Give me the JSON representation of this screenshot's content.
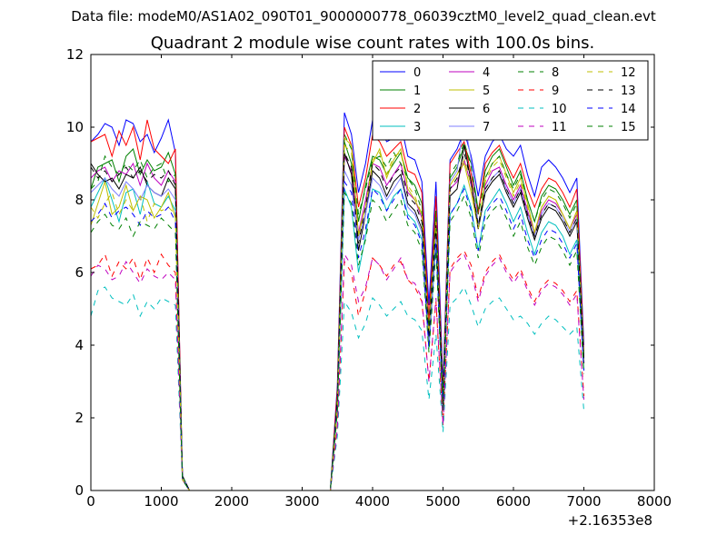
{
  "page_header": "Data file: modeM0/AS1A02_090T01_9000000778_06039cztM0_level2_quad_clean.evt",
  "chart_data": {
    "type": "line",
    "title": "Quadrant 2 module wise count rates with 100.0s bins.",
    "xlabel": "",
    "ylabel": "",
    "x_offset_label": "+2.16353e8",
    "xlim": [
      0,
      8000
    ],
    "ylim": [
      0,
      12
    ],
    "xticks": [
      0,
      1000,
      2000,
      3000,
      4000,
      5000,
      6000,
      7000,
      8000
    ],
    "yticks": [
      0,
      2,
      4,
      6,
      8,
      10,
      12
    ],
    "grid": false,
    "legend": {
      "placement": "top-right",
      "columns": 4
    },
    "x": [
      0,
      100,
      200,
      300,
      400,
      500,
      600,
      700,
      800,
      900,
      1000,
      1100,
      1200,
      1300,
      1400,
      1500,
      1600,
      1700,
      1800,
      1900,
      2000,
      2100,
      2200,
      2300,
      2400,
      2500,
      2600,
      2700,
      2800,
      2900,
      3000,
      3100,
      3200,
      3300,
      3400,
      3500,
      3600,
      3700,
      3800,
      3900,
      4000,
      4100,
      4200,
      4300,
      4400,
      4500,
      4600,
      4700,
      4800,
      4900,
      5000,
      5100,
      5200,
      5300,
      5400,
      5500,
      5600,
      5700,
      5800,
      5900,
      6000,
      6100,
      6200,
      6300,
      6400,
      6500,
      6600,
      6700,
      6800,
      6900,
      7000
    ],
    "series": [
      {
        "name": "0",
        "color": "#0000ff",
        "dash": "solid",
        "values": [
          9.6,
          9.8,
          10.1,
          10.0,
          9.5,
          10.2,
          10.1,
          9.6,
          9.8,
          9.3,
          9.7,
          10.2,
          9.3,
          0.4,
          0,
          0,
          0,
          0,
          0,
          0,
          0,
          0,
          0,
          0,
          0,
          0,
          0,
          0,
          0,
          0,
          0,
          0,
          0,
          0,
          0,
          2.9,
          10.4,
          9.8,
          8.2,
          9.0,
          10.2,
          10.0,
          9.6,
          9.7,
          10.1,
          9.2,
          9.1,
          8.5,
          5.1,
          8.5,
          2.9,
          9.1,
          9.4,
          9.9,
          9.2,
          8.1,
          9.2,
          9.6,
          9.8,
          9.4,
          9.2,
          9.5,
          8.7,
          8.1,
          8.9,
          9.1,
          8.9,
          8.6,
          8.2,
          8.6,
          4.0
        ]
      },
      {
        "name": "1",
        "color": "#008000",
        "dash": "solid",
        "values": [
          8.3,
          8.9,
          9.0,
          9.1,
          8.5,
          9.2,
          9.4,
          8.7,
          9.1,
          8.8,
          8.9,
          9.3,
          8.7,
          0.4,
          0,
          0,
          0,
          0,
          0,
          0,
          0,
          0,
          0,
          0,
          0,
          0,
          0,
          0,
          0,
          0,
          0,
          0,
          0,
          0,
          0,
          2.6,
          9.6,
          9.0,
          7.4,
          8.4,
          9.2,
          9.1,
          8.7,
          9.0,
          9.3,
          8.6,
          8.4,
          7.9,
          4.5,
          7.7,
          2.5,
          8.6,
          8.9,
          9.5,
          9.0,
          7.7,
          8.8,
          9.2,
          9.4,
          8.9,
          8.4,
          8.8,
          8.0,
          7.4,
          8.1,
          8.4,
          8.3,
          8.0,
          7.6,
          8.0,
          3.7
        ]
      },
      {
        "name": "2",
        "color": "#ff0000",
        "dash": "solid",
        "values": [
          9.6,
          9.7,
          9.8,
          9.2,
          9.9,
          9.5,
          10.0,
          9.1,
          10.2,
          9.4,
          9.2,
          9.0,
          9.4,
          0.4,
          0,
          0,
          0,
          0,
          0,
          0,
          0,
          0,
          0,
          0,
          0,
          0,
          0,
          0,
          0,
          0,
          0,
          0,
          0,
          0,
          0,
          2.8,
          10.0,
          9.5,
          7.8,
          8.6,
          9.8,
          9.6,
          9.2,
          9.4,
          9.6,
          8.8,
          8.7,
          8.2,
          4.7,
          8.1,
          2.6,
          9.0,
          9.3,
          9.6,
          8.7,
          7.6,
          9.0,
          9.3,
          9.5,
          9.0,
          8.6,
          9.0,
          8.3,
          7.8,
          8.3,
          8.6,
          8.5,
          8.2,
          7.8,
          8.3,
          3.8
        ]
      },
      {
        "name": "3",
        "color": "#00bfbf",
        "dash": "solid",
        "values": [
          7.8,
          8.2,
          8.6,
          8.0,
          7.4,
          8.2,
          8.3,
          7.6,
          8.5,
          7.9,
          7.8,
          8.1,
          7.7,
          0.3,
          0,
          0,
          0,
          0,
          0,
          0,
          0,
          0,
          0,
          0,
          0,
          0,
          0,
          0,
          0,
          0,
          0,
          0,
          0,
          0,
          0,
          2.2,
          8.3,
          7.8,
          6.0,
          7.0,
          8.3,
          8.2,
          7.7,
          8.1,
          8.3,
          7.6,
          7.4,
          6.9,
          3.9,
          6.8,
          2.2,
          7.6,
          7.9,
          8.4,
          7.8,
          6.6,
          7.7,
          8.0,
          8.3,
          7.9,
          7.4,
          7.8,
          7.1,
          6.5,
          7.1,
          7.4,
          7.3,
          7.0,
          6.5,
          6.9,
          3.3
        ]
      },
      {
        "name": "4",
        "color": "#bf00bf",
        "dash": "solid",
        "values": [
          8.6,
          8.8,
          8.9,
          8.5,
          8.8,
          8.7,
          9.0,
          8.4,
          9.0,
          8.6,
          8.4,
          8.8,
          8.5,
          0.4,
          0,
          0,
          0,
          0,
          0,
          0,
          0,
          0,
          0,
          0,
          0,
          0,
          0,
          0,
          0,
          0,
          0,
          0,
          0,
          0,
          0,
          2.5,
          9.2,
          8.8,
          7.1,
          8.0,
          9.0,
          8.9,
          8.4,
          8.7,
          9.0,
          8.2,
          8.0,
          7.5,
          4.3,
          7.4,
          2.4,
          8.3,
          8.5,
          9.1,
          8.4,
          7.2,
          8.4,
          8.8,
          8.9,
          8.4,
          8.0,
          8.4,
          7.7,
          7.1,
          7.7,
          8.0,
          7.9,
          7.6,
          7.2,
          7.6,
          3.6
        ]
      },
      {
        "name": "5",
        "color": "#bfbf00",
        "dash": "solid",
        "values": [
          7.3,
          7.9,
          8.5,
          7.6,
          7.8,
          8.4,
          7.7,
          8.1,
          8.0,
          7.5,
          7.8,
          8.2,
          7.5,
          0.3,
          0,
          0,
          0,
          0,
          0,
          0,
          0,
          0,
          0,
          0,
          0,
          0,
          0,
          0,
          0,
          0,
          0,
          0,
          0,
          0,
          0,
          2.3,
          9.7,
          9.5,
          7.0,
          7.8,
          9.0,
          9.4,
          8.6,
          9.1,
          9.4,
          8.3,
          8.0,
          7.6,
          4.2,
          7.3,
          2.4,
          8.4,
          8.7,
          9.0,
          8.2,
          7.2,
          8.6,
          9.0,
          9.2,
          8.7,
          8.2,
          8.6,
          7.9,
          7.1,
          7.8,
          8.1,
          8.0,
          7.6,
          7.2,
          7.7,
          3.5
        ]
      },
      {
        "name": "6",
        "color": "#000000",
        "dash": "solid",
        "values": [
          9.0,
          8.7,
          8.5,
          8.6,
          8.3,
          8.7,
          8.6,
          8.9,
          8.4,
          8.2,
          8.1,
          8.6,
          8.3,
          0.4,
          0,
          0,
          0,
          0,
          0,
          0,
          0,
          0,
          0,
          0,
          0,
          0,
          0,
          0,
          0,
          0,
          0,
          0,
          0,
          0,
          0,
          2.5,
          9.3,
          8.7,
          6.6,
          7.6,
          8.8,
          8.6,
          8.1,
          8.5,
          8.7,
          7.9,
          7.7,
          7.2,
          4.1,
          7.2,
          2.4,
          8.1,
          8.3,
          9.5,
          8.5,
          7.2,
          8.2,
          8.5,
          8.7,
          8.2,
          7.8,
          8.2,
          7.5,
          6.9,
          7.5,
          7.8,
          7.7,
          7.4,
          7.0,
          7.4,
          3.5
        ]
      },
      {
        "name": "7",
        "color": "#7f7fff",
        "dash": "solid",
        "values": [
          8.2,
          8.4,
          8.6,
          8.3,
          8.1,
          8.5,
          8.3,
          8.0,
          8.4,
          8.2,
          8.1,
          8.3,
          8.0,
          0.4,
          0,
          0,
          0,
          0,
          0,
          0,
          0,
          0,
          0,
          0,
          0,
          0,
          0,
          0,
          0,
          0,
          0,
          0,
          0,
          0,
          0,
          2.4,
          8.8,
          8.4,
          6.9,
          7.6,
          8.6,
          8.4,
          8.0,
          8.3,
          8.6,
          7.8,
          7.6,
          7.1,
          4.0,
          7.0,
          2.3,
          8.5,
          8.8,
          10.2,
          9.1,
          7.3,
          8.3,
          8.6,
          8.8,
          8.3,
          7.9,
          8.3,
          7.6,
          7.0,
          7.6,
          7.9,
          7.8,
          7.5,
          7.1,
          7.5,
          3.6
        ]
      },
      {
        "name": "8",
        "color": "#008000",
        "dash": "dashed",
        "values": [
          8.3,
          8.5,
          9.2,
          8.9,
          8.7,
          9.0,
          8.8,
          9.1,
          8.6,
          8.9,
          9.0,
          8.5,
          8.7,
          0.4,
          0,
          0,
          0,
          0,
          0,
          0,
          0,
          0,
          0,
          0,
          0,
          0,
          0,
          0,
          0,
          0,
          0,
          0,
          0,
          0,
          0,
          2.6,
          9.8,
          9.4,
          7.6,
          8.3,
          9.1,
          9.2,
          8.9,
          9.3,
          9.0,
          8.6,
          8.3,
          7.7,
          4.5,
          7.7,
          2.5,
          8.7,
          9.0,
          9.6,
          8.9,
          7.6,
          8.6,
          9.0,
          9.2,
          8.7,
          8.3,
          8.7,
          8.0,
          7.4,
          8.0,
          8.3,
          8.2,
          7.9,
          7.5,
          7.9,
          3.7
        ]
      },
      {
        "name": "9",
        "color": "#ff0000",
        "dash": "dashed",
        "values": [
          6.1,
          6.2,
          6.5,
          5.9,
          6.3,
          6.1,
          6.4,
          5.8,
          6.4,
          6.0,
          6.5,
          6.2,
          6.0,
          0.3,
          0,
          0,
          0,
          0,
          0,
          0,
          0,
          0,
          0,
          0,
          0,
          0,
          0,
          0,
          0,
          0,
          0,
          0,
          0,
          0,
          0,
          1.8,
          6.3,
          6.0,
          4.8,
          5.5,
          6.4,
          6.2,
          5.9,
          6.2,
          6.3,
          5.8,
          5.6,
          5.2,
          3.0,
          5.2,
          1.8,
          6.1,
          6.4,
          6.6,
          6.2,
          5.3,
          6.0,
          6.3,
          6.5,
          6.1,
          5.8,
          6.1,
          5.6,
          5.2,
          5.6,
          5.8,
          5.7,
          5.5,
          5.2,
          5.5,
          2.6
        ]
      },
      {
        "name": "10",
        "color": "#00bfbf",
        "dash": "dashed",
        "values": [
          4.8,
          5.5,
          5.6,
          5.3,
          5.2,
          5.1,
          5.4,
          4.8,
          5.2,
          5.0,
          5.3,
          5.2,
          5.1,
          0.3,
          0,
          0,
          0,
          0,
          0,
          0,
          0,
          0,
          0,
          0,
          0,
          0,
          0,
          0,
          0,
          0,
          0,
          0,
          0,
          0,
          0,
          1.5,
          5.2,
          4.9,
          4.2,
          4.6,
          5.3,
          5.1,
          4.8,
          5.0,
          5.2,
          4.8,
          4.7,
          4.4,
          2.5,
          4.3,
          1.6,
          5.1,
          5.3,
          5.6,
          5.1,
          4.5,
          5.0,
          5.2,
          5.3,
          5.0,
          4.7,
          4.8,
          4.6,
          4.3,
          4.6,
          4.8,
          4.7,
          4.5,
          4.3,
          4.5,
          2.2
        ]
      },
      {
        "name": "11",
        "color": "#bf00bf",
        "dash": "dashed",
        "values": [
          5.9,
          6.2,
          6.1,
          5.8,
          5.9,
          6.3,
          6.0,
          5.7,
          6.1,
          5.9,
          5.8,
          6.0,
          5.8,
          0.3,
          0,
          0,
          0,
          0,
          0,
          0,
          0,
          0,
          0,
          0,
          0,
          0,
          0,
          0,
          0,
          0,
          0,
          0,
          0,
          0,
          0,
          1.7,
          6.5,
          6.2,
          5.2,
          5.6,
          6.4,
          6.2,
          5.8,
          6.1,
          6.4,
          5.8,
          5.7,
          5.3,
          3.0,
          5.3,
          1.8,
          6.0,
          6.3,
          6.5,
          6.0,
          5.2,
          5.9,
          6.2,
          6.4,
          6.0,
          5.7,
          6.0,
          5.5,
          5.1,
          5.5,
          5.7,
          5.6,
          5.4,
          5.1,
          5.4,
          2.5
        ]
      },
      {
        "name": "12",
        "color": "#bfbf00",
        "dash": "dashed",
        "values": [
          7.8,
          7.5,
          7.9,
          8.2,
          7.6,
          8.0,
          7.7,
          8.1,
          7.4,
          7.9,
          7.7,
          7.8,
          7.6,
          0.3,
          0,
          0,
          0,
          0,
          0,
          0,
          0,
          0,
          0,
          0,
          0,
          0,
          0,
          0,
          0,
          0,
          0,
          0,
          0,
          0,
          0,
          2.3,
          9.5,
          9.3,
          7.1,
          7.8,
          9.1,
          9.3,
          8.7,
          9.2,
          9.3,
          8.4,
          8.1,
          7.6,
          4.3,
          7.4,
          2.4,
          8.4,
          8.7,
          9.1,
          8.4,
          7.2,
          8.5,
          8.9,
          9.1,
          8.6,
          8.1,
          8.5,
          7.8,
          7.1,
          7.8,
          8.1,
          8.0,
          7.6,
          7.2,
          7.7,
          3.5
        ]
      },
      {
        "name": "13",
        "color": "#000000",
        "dash": "dashed",
        "values": [
          8.9,
          8.6,
          8.8,
          8.5,
          8.7,
          8.9,
          8.6,
          8.8,
          8.5,
          8.7,
          8.6,
          8.8,
          8.4,
          0.4,
          0,
          0,
          0,
          0,
          0,
          0,
          0,
          0,
          0,
          0,
          0,
          0,
          0,
          0,
          0,
          0,
          0,
          0,
          0,
          0,
          0,
          2.5,
          9.3,
          8.9,
          6.8,
          7.8,
          9.0,
          8.8,
          8.3,
          8.7,
          8.9,
          8.1,
          7.9,
          7.4,
          4.2,
          7.3,
          2.4,
          8.3,
          8.6,
          9.3,
          8.5,
          7.3,
          8.3,
          8.6,
          8.8,
          8.3,
          7.9,
          8.3,
          7.6,
          7.0,
          7.6,
          7.9,
          7.8,
          7.5,
          7.1,
          7.5,
          3.6
        ]
      },
      {
        "name": "14",
        "color": "#0000ff",
        "dash": "dashed",
        "values": [
          7.4,
          7.6,
          7.9,
          7.5,
          7.7,
          7.8,
          7.6,
          7.3,
          7.7,
          7.5,
          7.6,
          7.8,
          7.4,
          0.3,
          0,
          0,
          0,
          0,
          0,
          0,
          0,
          0,
          0,
          0,
          0,
          0,
          0,
          0,
          0,
          0,
          0,
          0,
          0,
          0,
          0,
          2.3,
          8.5,
          8.2,
          6.4,
          7.2,
          8.3,
          8.1,
          7.7,
          8.0,
          8.3,
          7.5,
          7.3,
          6.8,
          3.9,
          6.8,
          2.2,
          7.6,
          7.9,
          8.3,
          7.7,
          6.6,
          7.6,
          7.9,
          8.1,
          7.7,
          7.2,
          7.6,
          6.9,
          6.4,
          6.9,
          7.2,
          7.1,
          6.8,
          6.4,
          6.8,
          3.3
        ]
      },
      {
        "name": "15",
        "color": "#008000",
        "dash": "dashed",
        "values": [
          7.1,
          7.4,
          7.6,
          7.3,
          7.2,
          7.5,
          7.0,
          7.4,
          7.3,
          7.2,
          7.5,
          7.3,
          7.1,
          0.3,
          0,
          0,
          0,
          0,
          0,
          0,
          0,
          0,
          0,
          0,
          0,
          0,
          0,
          0,
          0,
          0,
          0,
          0,
          0,
          0,
          0,
          2.2,
          8.2,
          7.9,
          6.2,
          6.9,
          8.0,
          7.8,
          7.4,
          7.7,
          8.0,
          7.3,
          7.1,
          6.6,
          3.8,
          6.6,
          2.2,
          7.4,
          7.7,
          8.1,
          7.5,
          6.4,
          7.4,
          7.7,
          7.9,
          7.5,
          7.0,
          7.4,
          6.7,
          6.2,
          6.7,
          7.0,
          6.9,
          6.6,
          6.2,
          6.6,
          3.2
        ]
      }
    ]
  }
}
